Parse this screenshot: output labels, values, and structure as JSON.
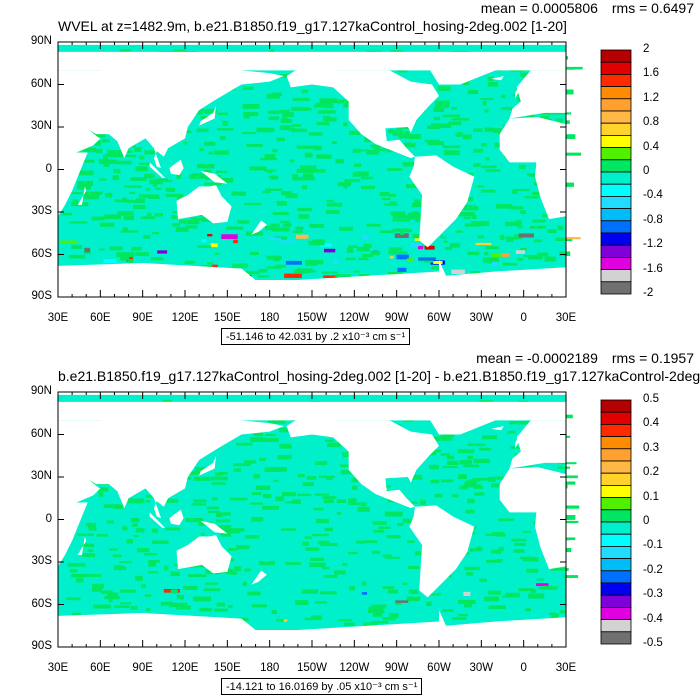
{
  "panels": [
    {
      "title": "WVEL at z=1482.9m, b.e21.B1850.f19_g17.127kaControl_hosing-2deg.002 [1-20]",
      "mean": "mean = 0.0005806",
      "rms": "rms = 0.6497",
      "info": "-51.146 to 42.031 by .2 x10⁻³ cm s⁻¹",
      "colorbar_labels": [
        "2",
        "1.6",
        "1.2",
        "0.8",
        "0.4",
        "0",
        "-0.4",
        "-0.8",
        "-1.2",
        "-1.6",
        "-2"
      ]
    },
    {
      "title": "b.e21.B1850.f19_g17.127kaControl_hosing-2deg.002 [1-20] - b.e21.B1850.f19_g17.127kaControl-2deg.",
      "mean": "mean = -0.0002189",
      "rms": "rms = 0.1957",
      "info": "-14.121 to 16.0169 by .05 x10⁻³ cm s⁻¹",
      "colorbar_labels": [
        "0.5",
        "0.4",
        "0.3",
        "0.2",
        "0.1",
        "0",
        "-0.1",
        "-0.2",
        "-0.3",
        "-0.4",
        "-0.5"
      ]
    }
  ],
  "lat_labels": [
    "90N",
    "60N",
    "30N",
    "0",
    "30S",
    "60S",
    "90S"
  ],
  "lon_labels": [
    "30E",
    "60E",
    "90E",
    "120E",
    "150E",
    "180",
    "150W",
    "120W",
    "90W",
    "60W",
    "30W",
    "0",
    "30E"
  ],
  "colors": [
    "#b40000",
    "#e00000",
    "#ff2a00",
    "#ff8c00",
    "#ffa030",
    "#ffb846",
    "#ffd22c",
    "#ffff00",
    "#50f000",
    "#00e660",
    "#00f0cc",
    "#00ffff",
    "#20dcff",
    "#00bcf8",
    "#0070ff",
    "#0000f0",
    "#8000d8",
    "#e000e0",
    "#d2d2d2",
    "#707070"
  ],
  "ocean_colors": {
    "main": "#00f0cc",
    "alt": "#00e660"
  }
}
